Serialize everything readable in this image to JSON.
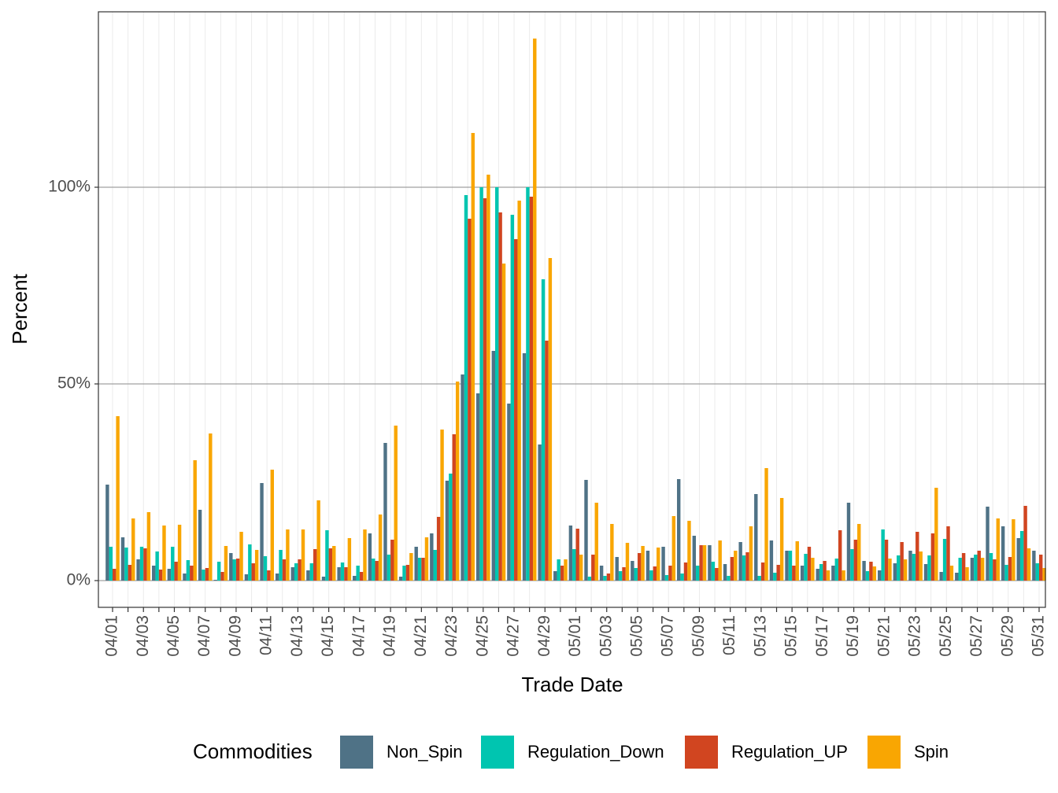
{
  "chart_data": {
    "type": "bar",
    "x_label": "Trade Date",
    "y_label": "Percent",
    "legend_title": "Commodities",
    "legend": "bottom",
    "grid": true,
    "categories": [
      "04/01",
      null,
      "04/03",
      null,
      "04/05",
      null,
      "04/07",
      null,
      "04/09",
      null,
      "04/11",
      null,
      "04/13",
      null,
      "04/15",
      null,
      "04/17",
      null,
      "04/19",
      null,
      "04/21",
      null,
      "04/23",
      null,
      "04/25",
      null,
      "04/27",
      null,
      "04/29",
      null,
      "05/01",
      null,
      "05/03",
      null,
      "05/05",
      null,
      "05/07",
      null,
      "05/09",
      null,
      "05/11",
      null,
      "05/13",
      null,
      "05/15",
      null,
      "05/17",
      null,
      "05/19",
      null,
      "05/21",
      null,
      "05/23",
      null,
      "05/25",
      null,
      "05/27",
      null,
      "05/29",
      null,
      "05/31"
    ],
    "ylim": [
      -6.8,
      144.6
    ],
    "yticks": [
      {
        "value": 0,
        "label": "0%"
      },
      {
        "value": 50,
        "label": "50%"
      },
      {
        "value": 100,
        "label": "100%"
      }
    ],
    "series": [
      {
        "name": "Non_Spin",
        "color": "#4f7286",
        "values": [
          24.4,
          11,
          5.4,
          3.8,
          3,
          1.8,
          18,
          0.2,
          7,
          1.6,
          24.8,
          1.8,
          3.4,
          2.6,
          1,
          3.4,
          1.2,
          12,
          35,
          1,
          8.6,
          12,
          25.4,
          52.4,
          47.6,
          58.4,
          45,
          57.8,
          34.6,
          2.4,
          14,
          25.6,
          3.8,
          6,
          5,
          7.6,
          8.6,
          25.8,
          11.4,
          9,
          4.2,
          9.8,
          22,
          10.2,
          7.6,
          3.8,
          3,
          3.8,
          19.8,
          5,
          2.6,
          4.4,
          7.6,
          4.2,
          2.2,
          2,
          5.8,
          18.8,
          13.8,
          10.8,
          7.6
        ]
      },
      {
        "name": "Regulation_Down",
        "color": "#00c5b0",
        "values": [
          8.6,
          8.4,
          8.6,
          7.4,
          8.6,
          5.2,
          2.8,
          4.8,
          5.4,
          9.2,
          6.2,
          7.8,
          4.4,
          4.4,
          12.8,
          4.6,
          3.8,
          5.6,
          6.6,
          3.8,
          5.8,
          7.8,
          27.2,
          98,
          100,
          100,
          93,
          100,
          76.6,
          5.4,
          8,
          1,
          1.2,
          2.4,
          3.2,
          2.6,
          1.4,
          1.8,
          3.8,
          4.8,
          1.2,
          6.4,
          1.2,
          2,
          7.6,
          6.8,
          4.2,
          5.6,
          8,
          2.4,
          13,
          6.4,
          6.8,
          6.4,
          10.6,
          5.8,
          6.6,
          7,
          4,
          12.6,
          4.4
        ]
      },
      {
        "name": "Regulation_UP",
        "color": "#d14520",
        "values": [
          3,
          4,
          8.2,
          2.8,
          4.8,
          3.8,
          3.2,
          2.2,
          5.6,
          4.4,
          2.6,
          5.4,
          5.4,
          8,
          8.2,
          3.4,
          2.2,
          5,
          10.4,
          4,
          5.8,
          16.2,
          37.2,
          92,
          97.2,
          93.6,
          86.8,
          97.6,
          61,
          3.8,
          13.2,
          6.6,
          1.8,
          3.4,
          7,
          3.6,
          3.8,
          4.6,
          9,
          3.2,
          6,
          7.2,
          4.6,
          4,
          3.8,
          8.6,
          5,
          12.8,
          10.4,
          4.8,
          10.4,
          9.8,
          12.4,
          12,
          13.8,
          7,
          7.6,
          5.4,
          6,
          19,
          6.6
        ]
      },
      {
        "name": "Spin",
        "color": "#f9a602",
        "values": [
          41.8,
          15.8,
          17.4,
          14,
          14.2,
          30.6,
          37.4,
          8.8,
          12.4,
          7.8,
          28.2,
          13,
          13,
          20.4,
          8.8,
          10.8,
          13,
          16.8,
          39.4,
          7,
          11,
          38.4,
          50.6,
          113.8,
          103.2,
          80.6,
          96.6,
          137.8,
          82,
          5.4,
          6.6,
          19.8,
          14.4,
          9.6,
          8.8,
          8.4,
          16.4,
          15.2,
          9,
          10.2,
          7.6,
          13.8,
          28.6,
          21,
          10,
          5.8,
          2.6,
          2.6,
          14.4,
          3.6,
          5.6,
          5.4,
          7.4,
          23.6,
          3.8,
          3.4,
          5.8,
          15.8,
          15.6,
          8.2,
          3.2
        ]
      }
    ]
  }
}
